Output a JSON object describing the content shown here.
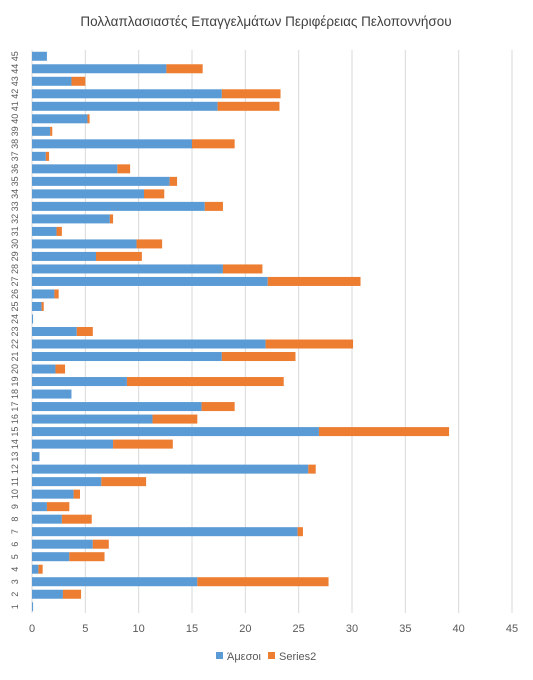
{
  "chart_data": {
    "type": "bar",
    "orientation": "horizontal",
    "stacked": true,
    "title": "Πολλαπλασιαστές Επαγγελμάτων Περιφέρειας Πελοποννήσου",
    "xlabel": "",
    "ylabel": "",
    "xlim": [
      0,
      45
    ],
    "xticks": [
      0,
      5,
      10,
      15,
      20,
      25,
      30,
      35,
      40,
      45
    ],
    "grid": "vertical-major",
    "legend_position": "bottom",
    "categories": [
      "1",
      "2",
      "3",
      "4",
      "5",
      "6",
      "7",
      "8",
      "9",
      "10",
      "11",
      "12",
      "13",
      "14",
      "15",
      "16",
      "17",
      "18",
      "19",
      "20",
      "21",
      "22",
      "23",
      "24",
      "25",
      "26",
      "27",
      "28",
      "29",
      "30",
      "31",
      "32",
      "33",
      "34",
      "35",
      "36",
      "37",
      "38",
      "39",
      "40",
      "41",
      "42",
      "43",
      "44",
      "45"
    ],
    "series": [
      {
        "name": "Άμεσοι",
        "color": "#5b9bd5",
        "values": [
          0.1,
          2.9,
          15.5,
          0.6,
          3.5,
          5.7,
          24.9,
          2.8,
          1.4,
          3.9,
          6.5,
          25.9,
          0.7,
          7.6,
          26.9,
          11.3,
          15.9,
          3.7,
          8.9,
          2.2,
          17.8,
          21.9,
          4.2,
          0.1,
          0.9,
          2.1,
          22.1,
          17.9,
          6.0,
          9.8,
          2.3,
          7.3,
          16.2,
          10.5,
          12.9,
          8.0,
          1.3,
          15.0,
          1.7,
          5.2,
          17.4,
          17.8,
          3.7,
          12.6,
          1.4
        ],
        "value_labels": [],
        "name_label": "Άμεσοι"
      },
      {
        "name": "Series2",
        "color": "#ed7d31",
        "values": [
          0.0,
          1.7,
          12.3,
          0.4,
          3.3,
          1.5,
          0.5,
          2.8,
          2.1,
          0.6,
          4.2,
          0.7,
          0.0,
          5.6,
          12.2,
          4.2,
          3.1,
          0.0,
          14.7,
          0.9,
          6.9,
          8.2,
          1.5,
          0.0,
          0.2,
          0.4,
          8.7,
          3.7,
          4.3,
          2.4,
          0.5,
          0.3,
          1.7,
          1.9,
          0.7,
          1.2,
          0.3,
          4.0,
          0.2,
          0.2,
          5.8,
          5.5,
          1.3,
          3.4,
          0.0
        ]
      }
    ]
  },
  "legend": {
    "items": [
      {
        "label": "Άμεσοι",
        "color": "#5b9bd5"
      },
      {
        "label": "Series2",
        "color": "#ed7d31"
      }
    ]
  }
}
